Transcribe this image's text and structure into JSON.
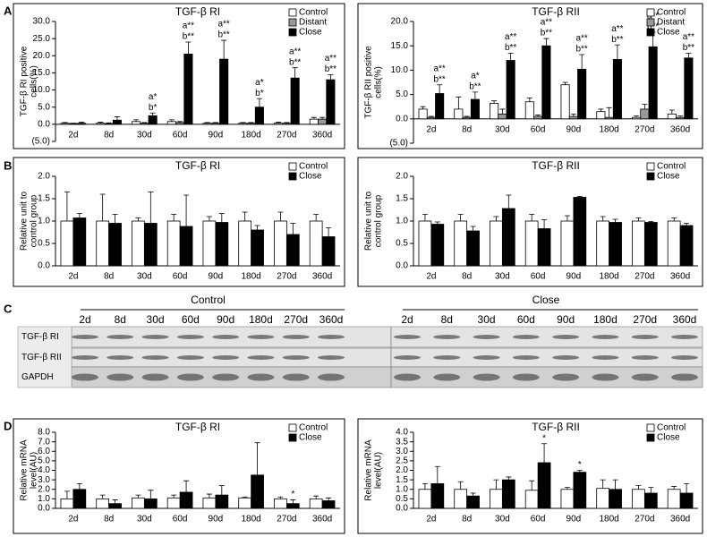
{
  "panels": [
    "A",
    "B",
    "C",
    "D"
  ],
  "chart_data": [
    {
      "type": "bar",
      "title": "TGF-β RI",
      "ylabel": [
        "TGF-β RI positive",
        "cells(%)"
      ],
      "categories": [
        "2d",
        "8d",
        "30d",
        "60d",
        "90d",
        "180d",
        "270d",
        "360d"
      ],
      "ylim": [
        -5,
        30
      ],
      "yticks": [
        {
          "value": -5,
          "label": "(5.0)"
        },
        {
          "value": 0,
          "label": "0.0"
        },
        {
          "value": 5,
          "label": "5.0"
        },
        {
          "value": 10,
          "label": "10.0"
        },
        {
          "value": 15,
          "label": "15.0"
        },
        {
          "value": 20,
          "label": "20.0"
        },
        {
          "value": 25,
          "label": "25.0"
        },
        {
          "value": 30,
          "label": "30.0"
        }
      ],
      "series": [
        {
          "name": "Control",
          "color": "#ffffff",
          "values": [
            0.3,
            0.3,
            0.8,
            0.8,
            0.3,
            0.3,
            0.3,
            1.5
          ],
          "errors": [
            0.2,
            0.3,
            0.5,
            0.5,
            0.2,
            0.2,
            0.3,
            0.5
          ]
        },
        {
          "name": "Distant",
          "color": "#999999",
          "values": [
            0.2,
            0.2,
            0.3,
            0.5,
            0.3,
            0.3,
            0.3,
            1.5
          ],
          "errors": [
            0.1,
            0.2,
            0.2,
            0.3,
            0.2,
            0.2,
            0.2,
            0.5
          ]
        },
        {
          "name": "Close",
          "color": "#000000",
          "values": [
            0.3,
            1.2,
            2.5,
            20.5,
            19,
            5,
            13.5,
            13
          ],
          "errors": [
            0.3,
            1,
            0.8,
            3.5,
            5.5,
            2.5,
            3,
            1.5
          ],
          "annotations": [
            null,
            null,
            [
              "a*",
              "b*"
            ],
            [
              "a**",
              "b**"
            ],
            [
              "a**",
              "b**"
            ],
            [
              "a*",
              "b*"
            ],
            [
              "a**",
              "b**"
            ],
            [
              "a**",
              "b**"
            ]
          ]
        }
      ]
    },
    {
      "type": "bar",
      "title": "TGF-β RII",
      "ylabel": [
        "TGF-β RII positive",
        "cells(%)"
      ],
      "categories": [
        "2d",
        "8d",
        "30d",
        "60d",
        "90d",
        "180d",
        "270d",
        "360d"
      ],
      "ylim": [
        -5,
        20
      ],
      "yticks": [
        {
          "value": -5,
          "label": "(5.0)"
        },
        {
          "value": 0,
          "label": "0.0"
        },
        {
          "value": 5,
          "label": "5.0"
        },
        {
          "value": 10,
          "label": "10.0"
        },
        {
          "value": 15,
          "label": "15.0"
        },
        {
          "value": 20,
          "label": "20.0"
        }
      ],
      "series": [
        {
          "name": "Control",
          "color": "#ffffff",
          "values": [
            2,
            2,
            3.2,
            3.5,
            7,
            1.5,
            0.3,
            1
          ],
          "errors": [
            0.5,
            2.5,
            0.5,
            0.8,
            0.5,
            0.5,
            0.3,
            0.8
          ]
        },
        {
          "name": "Distant",
          "color": "#999999",
          "values": [
            0.3,
            0.3,
            1,
            0.5,
            0.5,
            0.3,
            2,
            0.3
          ],
          "errors": [
            0.2,
            0.2,
            1,
            0.3,
            0.5,
            2,
            1,
            0.3
          ]
        },
        {
          "name": "Close",
          "color": "#000000",
          "values": [
            5.2,
            4,
            12,
            15,
            10.2,
            12.2,
            14.8,
            12.5
          ],
          "errors": [
            1.8,
            1.5,
            1.5,
            1.5,
            3,
            3,
            3,
            1
          ],
          "annotations": [
            [
              "a**",
              "b**"
            ],
            [
              "a*",
              "b**"
            ],
            [
              "a**",
              "b**"
            ],
            [
              "a**",
              "b**"
            ],
            [
              "a**",
              "b**"
            ],
            [
              "a**",
              "b**"
            ],
            [
              "a**",
              "b**"
            ],
            [
              "a**",
              "b**"
            ]
          ]
        }
      ]
    },
    {
      "type": "bar",
      "title": "TGF-β RI",
      "ylabel": [
        "Relative unit to",
        "control group"
      ],
      "categories": [
        "2d",
        "8d",
        "30d",
        "60d",
        "90d",
        "180d",
        "270d",
        "360d"
      ],
      "ylim": [
        0,
        2
      ],
      "yticks": [
        {
          "value": 0,
          "label": "0.0"
        },
        {
          "value": 0.5,
          "label": "0.5"
        },
        {
          "value": 1,
          "label": "1.0"
        },
        {
          "value": 1.5,
          "label": "1.5"
        },
        {
          "value": 2,
          "label": "2.0"
        }
      ],
      "series": [
        {
          "name": "Control",
          "color": "#ffffff",
          "values": [
            1,
            1,
            1,
            1,
            1,
            1,
            1,
            1
          ],
          "errors": [
            0.65,
            0.6,
            0.07,
            0.15,
            0.1,
            0.2,
            0.2,
            0.15
          ]
        },
        {
          "name": "Close",
          "color": "#000000",
          "values": [
            1.07,
            0.95,
            0.95,
            0.88,
            0.97,
            0.8,
            0.7,
            0.65
          ],
          "errors": [
            0.1,
            0.2,
            0.7,
            0.7,
            0.2,
            0.1,
            0.25,
            0.2
          ]
        }
      ]
    },
    {
      "type": "bar",
      "title": "TGF-β RII",
      "ylabel": [
        "Relative unit to",
        "control group"
      ],
      "categories": [
        "2d",
        "8d",
        "30d",
        "60d",
        "90d",
        "180d",
        "270d",
        "360d"
      ],
      "ylim": [
        0,
        2
      ],
      "yticks": [
        {
          "value": 0,
          "label": "0.0"
        },
        {
          "value": 0.5,
          "label": "0.5"
        },
        {
          "value": 1,
          "label": "1.0"
        },
        {
          "value": 1.5,
          "label": "1.5"
        },
        {
          "value": 2,
          "label": "2.0"
        }
      ],
      "series": [
        {
          "name": "Control",
          "color": "#ffffff",
          "values": [
            1,
            1,
            1,
            1,
            1,
            1,
            1,
            1
          ],
          "errors": [
            0.15,
            0.15,
            0.1,
            0.15,
            0.12,
            0.1,
            0.07,
            0.07
          ]
        },
        {
          "name": "Close",
          "color": "#000000",
          "values": [
            0.93,
            0.78,
            1.28,
            0.83,
            1.53,
            0.97,
            0.97,
            0.9
          ],
          "errors": [
            0.05,
            0.1,
            0.3,
            0.2,
            0.02,
            0.07,
            0.02,
            0.05
          ]
        }
      ]
    },
    {
      "type": "bar",
      "title": "TGF-β RI",
      "ylabel": [
        "Relative mRNA",
        "level(AU)"
      ],
      "categories": [
        "2d",
        "8d",
        "30d",
        "60d",
        "90d",
        "180d",
        "270d",
        "360d"
      ],
      "ylim": [
        0,
        8
      ],
      "yticks": [
        {
          "value": 0,
          "label": "0.0"
        },
        {
          "value": 1,
          "label": "1.0"
        },
        {
          "value": 2,
          "label": "2.0"
        },
        {
          "value": 3,
          "label": "3.0"
        },
        {
          "value": 4,
          "label": "4.0"
        },
        {
          "value": 5,
          "label": "5.0"
        },
        {
          "value": 6,
          "label": "6.0"
        },
        {
          "value": 7,
          "label": "7.0"
        },
        {
          "value": 8,
          "label": "8.0"
        }
      ],
      "series": [
        {
          "name": "Control",
          "color": "#ffffff",
          "values": [
            1,
            1,
            1.1,
            1.1,
            1.1,
            1.1,
            1,
            1
          ],
          "errors": [
            0.8,
            0.4,
            0.3,
            0.3,
            0.4,
            0.1,
            0.2,
            0.3
          ]
        },
        {
          "name": "Close",
          "color": "#000000",
          "values": [
            2,
            0.5,
            1,
            1.7,
            1.4,
            3.5,
            0.5,
            0.8
          ],
          "errors": [
            0.6,
            0.4,
            0.9,
            1.2,
            1,
            3.4,
            0.4,
            0.3
          ],
          "annotations": [
            null,
            null,
            null,
            null,
            null,
            null,
            [
              "*"
            ],
            null
          ]
        }
      ]
    },
    {
      "type": "bar",
      "title": "TGF-β RII",
      "ylabel": [
        "Relative mRNA",
        "level(AU)"
      ],
      "categories": [
        "2d",
        "8d",
        "30d",
        "60d",
        "90d",
        "180d",
        "270d",
        "360d"
      ],
      "ylim": [
        0,
        4
      ],
      "yticks": [
        {
          "value": 0,
          "label": "0.0"
        },
        {
          "value": 0.5,
          "label": "0.5"
        },
        {
          "value": 1,
          "label": "1.0"
        },
        {
          "value": 1.5,
          "label": "1.5"
        },
        {
          "value": 2,
          "label": "2.0"
        },
        {
          "value": 2.5,
          "label": "2.5"
        },
        {
          "value": 3,
          "label": "3.0"
        },
        {
          "value": 3.5,
          "label": "3.5"
        },
        {
          "value": 4,
          "label": "4.0"
        }
      ],
      "series": [
        {
          "name": "Control",
          "color": "#ffffff",
          "values": [
            1,
            1,
            1,
            0.95,
            1,
            1.05,
            1,
            1
          ],
          "errors": [
            0.3,
            0.4,
            0.5,
            0.5,
            0.1,
            0.45,
            0.2,
            0.15
          ]
        },
        {
          "name": "Close",
          "color": "#000000",
          "values": [
            1.3,
            0.65,
            1.5,
            2.4,
            1.9,
            1,
            0.8,
            0.8
          ],
          "errors": [
            0.9,
            0.15,
            0.15,
            1,
            0.1,
            0.5,
            0.3,
            0.5
          ],
          "annotations": [
            null,
            null,
            null,
            [
              "*"
            ],
            [
              "*"
            ],
            null,
            null,
            null
          ]
        }
      ]
    }
  ],
  "blot": {
    "groups": [
      {
        "name": "Control",
        "lanes": [
          "2d",
          "8d",
          "30d",
          "60d",
          "90d",
          "180d",
          "270d",
          "360d"
        ]
      },
      {
        "name": "Close",
        "lanes": [
          "2d",
          "8d",
          "30d",
          "60d",
          "90d",
          "180d",
          "270d",
          "360d"
        ]
      }
    ],
    "rows": [
      "TGF-β RI",
      "TGF-β RII",
      "GAPDH"
    ]
  }
}
